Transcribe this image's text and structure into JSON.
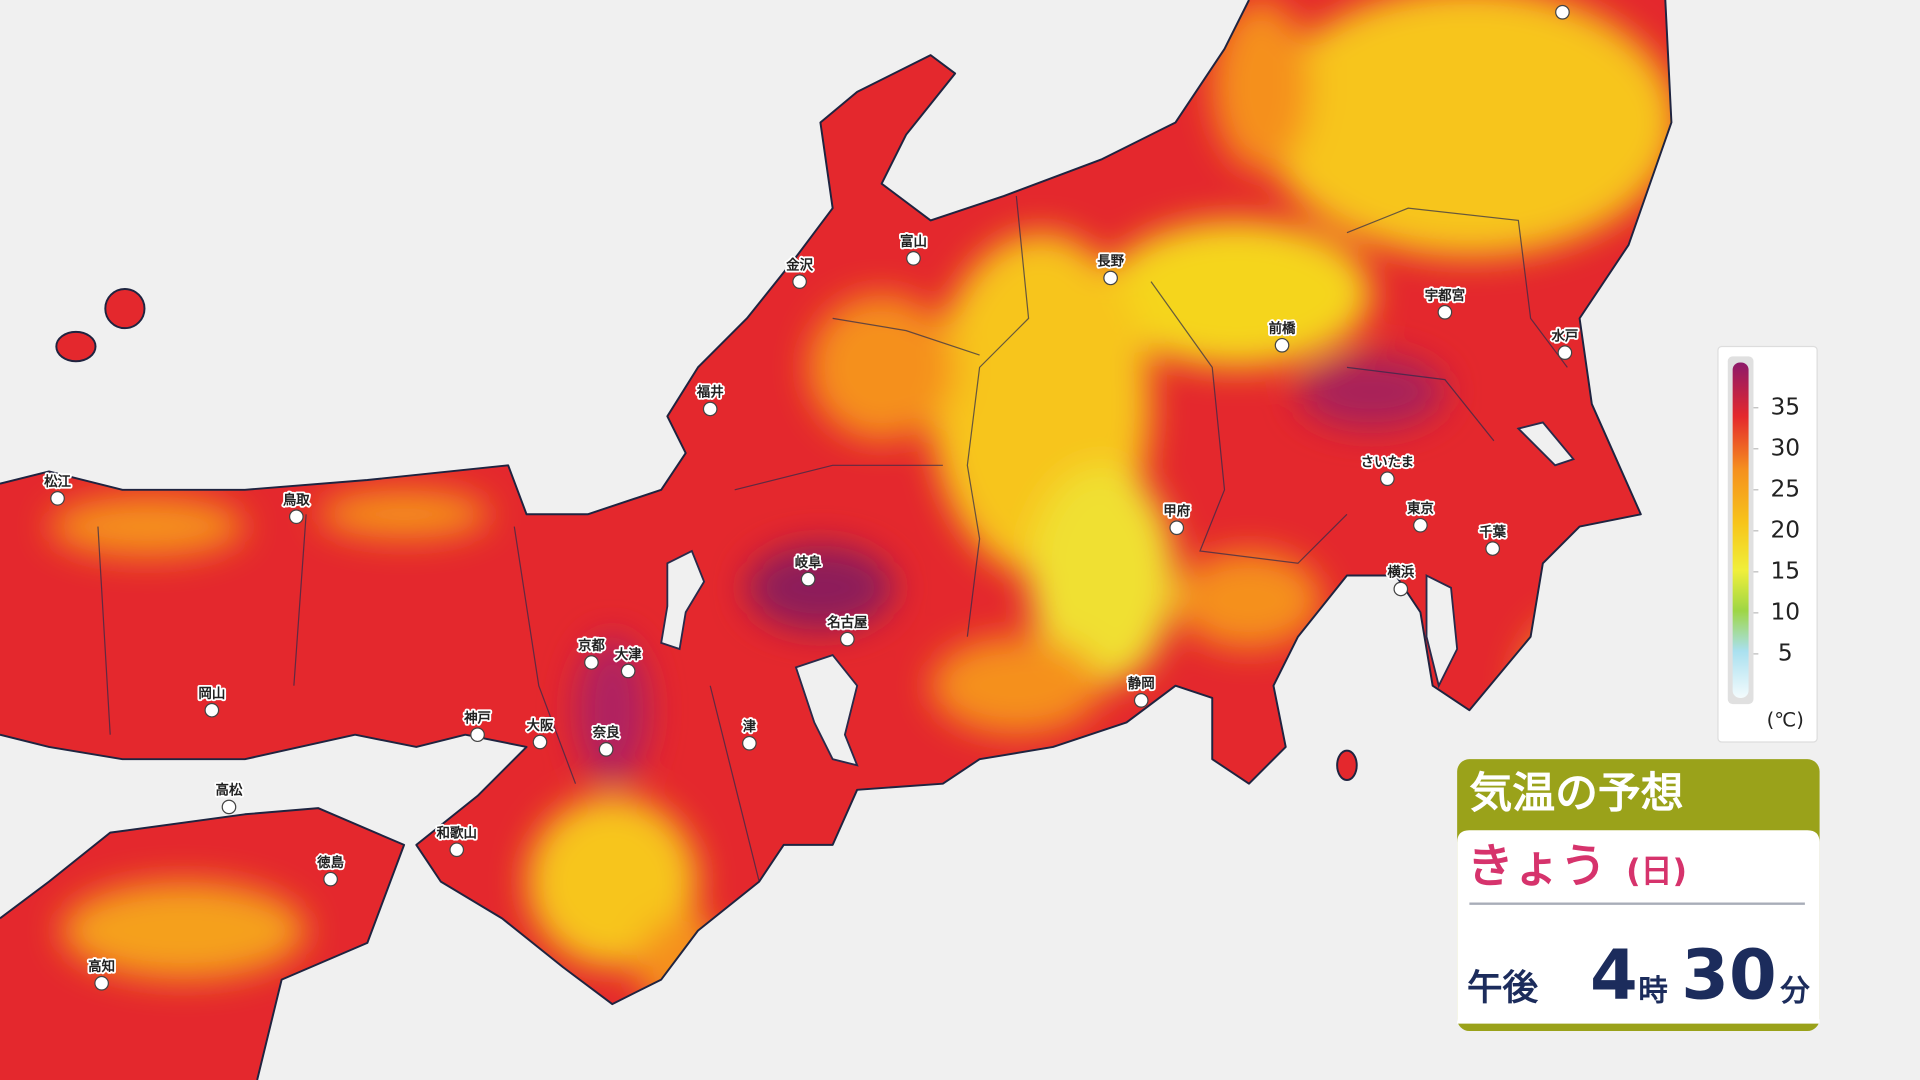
{
  "map": {
    "cities": [
      "松江",
      "鳥取",
      "岡山",
      "高松",
      "徳島",
      "高知",
      "神戸",
      "大阪",
      "京都",
      "大津",
      "奈良",
      "和歌山",
      "津",
      "岐阜",
      "名古屋",
      "福井",
      "金沢",
      "富山",
      "長野",
      "甲府",
      "静岡",
      "前橋",
      "宇都宮",
      "水戸",
      "さいたま",
      "東京",
      "千葉",
      "横浜"
    ]
  },
  "legend": {
    "ticks": [
      35,
      30,
      25,
      20,
      15,
      10,
      5
    ],
    "unit": "(℃)"
  },
  "panel": {
    "title": "気温の予想",
    "day": "きょう",
    "weekday": "(日)",
    "period": "午後",
    "hour": 4,
    "hour_unit": "時",
    "minute": 30,
    "minute_unit": "分"
  }
}
